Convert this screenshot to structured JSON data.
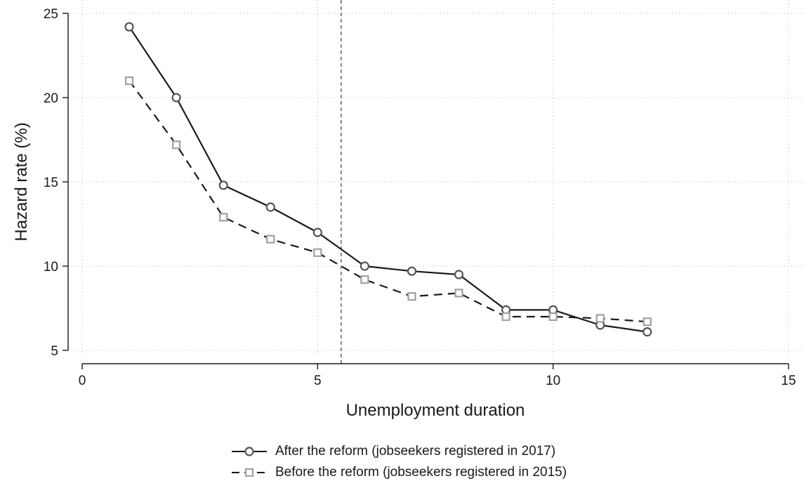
{
  "chart_data": {
    "type": "line",
    "title": "",
    "xlabel": "Unemployment duration",
    "ylabel": "Hazard rate (%)",
    "xlim": [
      0,
      15
    ],
    "ylim": [
      5,
      25
    ],
    "xticks": [
      0,
      5,
      10,
      15
    ],
    "yticks": [
      5,
      10,
      15,
      20,
      25
    ],
    "x_tick_labels": [
      "0",
      "5",
      "10",
      "15"
    ],
    "y_tick_labels": [
      "5",
      "10",
      "15",
      "20",
      "25"
    ],
    "grid": true,
    "vertical_reference_line": 5.5,
    "legend_position": "bottom-center",
    "x": [
      1,
      2,
      3,
      4,
      5,
      6,
      7,
      8,
      9,
      10,
      11,
      12
    ],
    "series": [
      {
        "name": "After the reform (jobseekers registered in 2017)",
        "marker": "circle",
        "line_style": "solid",
        "color": "#1a1a1a",
        "marker_color": "#555555",
        "values": [
          24.2,
          20.0,
          14.8,
          13.5,
          12.0,
          10.0,
          9.7,
          9.5,
          7.4,
          7.4,
          6.5,
          6.1
        ]
      },
      {
        "name": "Before the reform (jobseekers registered in 2015)",
        "marker": "square",
        "line_style": "dashed",
        "color": "#1a1a1a",
        "marker_color": "#a0a0a0",
        "values": [
          21.0,
          17.2,
          12.9,
          11.6,
          10.8,
          9.2,
          8.2,
          8.4,
          7.0,
          7.0,
          6.9,
          6.7
        ]
      }
    ]
  }
}
